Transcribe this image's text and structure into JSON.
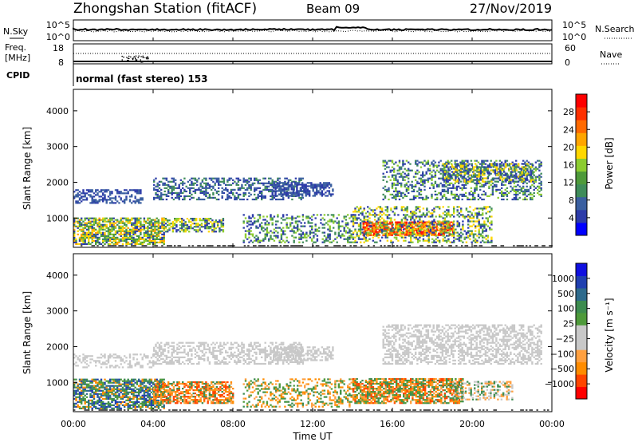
{
  "header": {
    "title": "Zhongshan Station (fitACF)",
    "beam": "Beam 09",
    "date": "27/Nov/2019"
  },
  "summary_panels": {
    "nsky_label": "N.Sky",
    "nsearch_label": "N.Search",
    "noise_ticks": [
      "10^5",
      "10^0"
    ],
    "freq_label_1": "Freq.",
    "freq_label_2": "[MHz]",
    "freq_ticks": [
      "18",
      "8"
    ],
    "nave_ticks": [
      "60",
      "0"
    ],
    "nave_label": "Nave",
    "cpid_label": "CPID",
    "cpid_text": "normal (fast stereo) 153"
  },
  "chart_data": [
    {
      "type": "heatmap",
      "name": "power",
      "xlabel": "Time UT",
      "ylabel": "Slant Range [km]",
      "xticks": [
        "00:00",
        "04:00",
        "08:00",
        "12:00",
        "16:00",
        "20:00",
        "00:00"
      ],
      "xlim": [
        0,
        24
      ],
      "yticks": [
        1000,
        2000,
        3000,
        4000
      ],
      "ylim": [
        180,
        4600
      ],
      "colorbar": {
        "label": "Power [dB]",
        "ticks": [
          "28",
          "24",
          "20",
          "16",
          "12",
          "8",
          "4"
        ],
        "colors": [
          "#0000ff",
          "#2c3ba8",
          "#3a5fa0",
          "#3f8c5a",
          "#4e9a3a",
          "#8ccc30",
          "#ffd700",
          "#ffa500",
          "#ff6a00",
          "#ff3000",
          "#ff0000"
        ]
      }
    },
    {
      "type": "heatmap",
      "name": "velocity",
      "xlabel": "Time UT",
      "ylabel": "Slant Range [km]",
      "xticks": [
        "00:00",
        "04:00",
        "08:00",
        "12:00",
        "16:00",
        "20:00",
        "00:00"
      ],
      "xlim": [
        0,
        24
      ],
      "yticks": [
        1000,
        2000,
        3000,
        4000
      ],
      "ylim": [
        180,
        4600
      ],
      "colorbar": {
        "label": "Velocity [m s⁻¹]",
        "ticks": [
          "1000",
          "500",
          "100",
          "25",
          "−25",
          "−100",
          "−500",
          "−1000"
        ],
        "colors": [
          "#ff0000",
          "#ff4500",
          "#ff8c00",
          "#ffa040",
          "#c8c8c8",
          "#c8c8c8",
          "#4e9a3a",
          "#3d8c4f",
          "#2d6a8c",
          "#2040b0",
          "#1010e0"
        ]
      }
    }
  ],
  "colors": {
    "gray_velocity": "#c8c8c8",
    "background": "#ffffff"
  }
}
